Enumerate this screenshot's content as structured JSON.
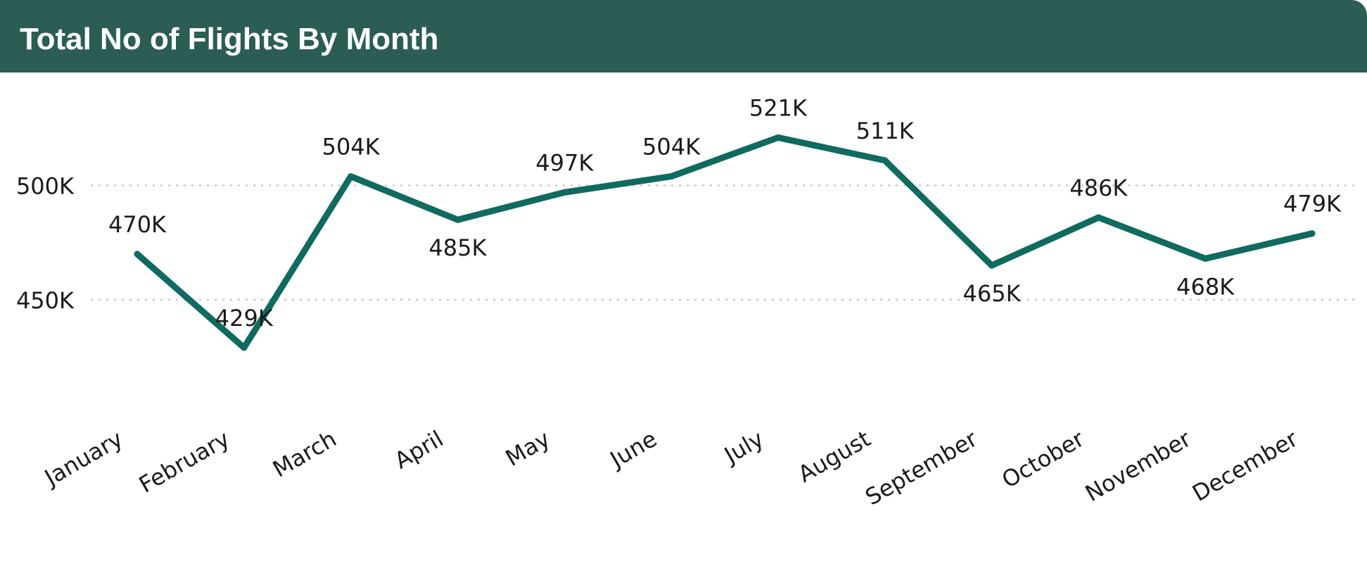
{
  "header": {
    "title": "Total No of Flights By Month"
  },
  "colors": {
    "header_bg": "#2b5d54",
    "line": "#0f6a60",
    "grid": "#c8c8c8"
  },
  "chart_data": {
    "type": "line",
    "title": "Total No of Flights By Month",
    "xlabel": "",
    "ylabel": "",
    "categories": [
      "January",
      "February",
      "March",
      "April",
      "May",
      "June",
      "July",
      "August",
      "September",
      "October",
      "November",
      "December"
    ],
    "series": [
      {
        "values": [
          470000,
          429000,
          504000,
          485000,
          497000,
          504000,
          521000,
          511000,
          465000,
          486000,
          468000,
          479000
        ]
      }
    ],
    "data_labels": [
      "470K",
      "429K",
      "504K",
      "485K",
      "497K",
      "504K",
      "521K",
      "511K",
      "465K",
      "486K",
      "468K",
      "479K"
    ],
    "label_positions": [
      "above",
      "above",
      "above",
      "below",
      "above",
      "above",
      "above",
      "above",
      "below",
      "above",
      "below",
      "above"
    ],
    "ylim": [
      408000,
      531000
    ],
    "yticks": [
      450000,
      500000
    ],
    "ytick_labels": [
      "450K",
      "500K"
    ],
    "grid": true,
    "grid_style": "dotted",
    "legend": "none"
  }
}
